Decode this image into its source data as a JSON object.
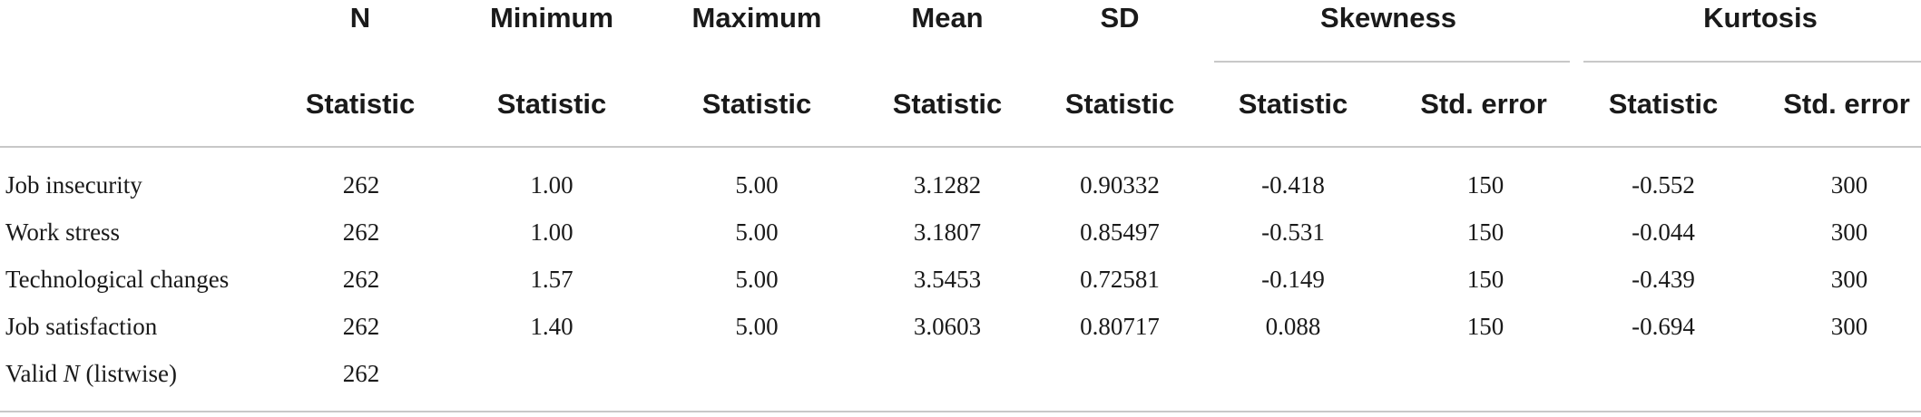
{
  "table": {
    "top_headers": {
      "n": "N",
      "minimum": "Minimum",
      "maximum": "Maximum",
      "mean": "Mean",
      "sd": "SD",
      "skewness": "Skewness",
      "kurtosis": "Kurtosis"
    },
    "sub_headers": [
      "Statistic",
      "Statistic",
      "Statistic",
      "Statistic",
      "Statistic",
      "Statistic",
      "Std. error",
      "Statistic",
      "Std. error"
    ],
    "rows": [
      {
        "label": "Job insecurity",
        "values": [
          "262",
          "1.00",
          "5.00",
          "3.1282",
          "0.90332",
          "-0.418",
          "150",
          "-0.552",
          "300"
        ]
      },
      {
        "label": "Work stress",
        "values": [
          "262",
          "1.00",
          "5.00",
          "3.1807",
          "0.85497",
          "-0.531",
          "150",
          "-0.044",
          "300"
        ]
      },
      {
        "label": "Technological changes",
        "values": [
          "262",
          "1.57",
          "5.00",
          "3.5453",
          "0.72581",
          "-0.149",
          "150",
          "-0.439",
          "300"
        ]
      },
      {
        "label": "Job satisfaction",
        "values": [
          "262",
          "1.40",
          "5.00",
          "3.0603",
          "0.80717",
          "0.088",
          "150",
          "-0.694",
          "300"
        ]
      }
    ],
    "valid_row": {
      "label_pre": "Valid ",
      "label_italic": "N",
      "label_post": " (listwise)",
      "n_value": "262"
    }
  }
}
